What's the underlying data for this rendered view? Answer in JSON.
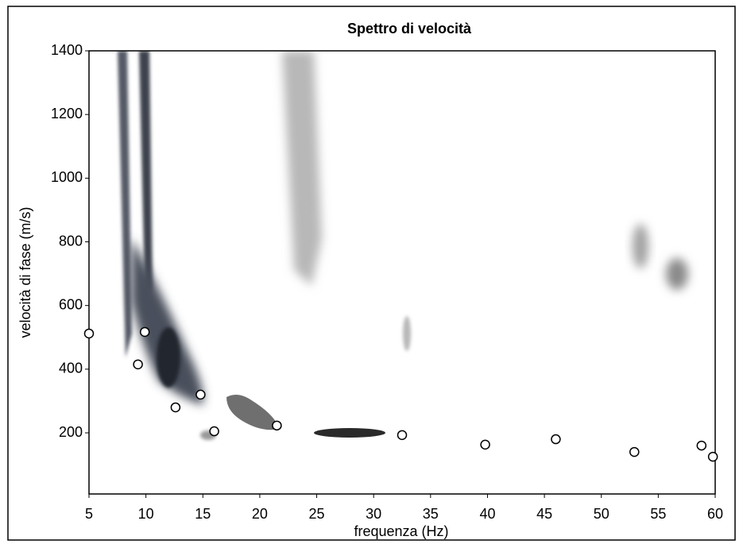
{
  "chart_data": {
    "type": "scatter",
    "title": "Spettro di velocità",
    "xlabel": "frequenza (Hz)",
    "ylabel": "velocità di fase (m/s)",
    "x": [
      5,
      9.9,
      9.3,
      12.6,
      14.8,
      16.0,
      21.5,
      32.5,
      39.8,
      46.0,
      52.9,
      58.8,
      59.8
    ],
    "values": [
      512,
      517,
      415,
      280,
      320,
      205,
      223,
      193,
      163,
      180,
      140,
      160,
      125
    ],
    "color": "#ffffff",
    "xlim": [
      5,
      60
    ],
    "ylim": [
      8,
      1400
    ],
    "xticks": [
      5,
      10,
      15,
      20,
      25,
      30,
      35,
      40,
      45,
      50,
      55,
      60
    ],
    "yticks": [
      200,
      400,
      600,
      800,
      1000,
      1200,
      1400
    ]
  }
}
